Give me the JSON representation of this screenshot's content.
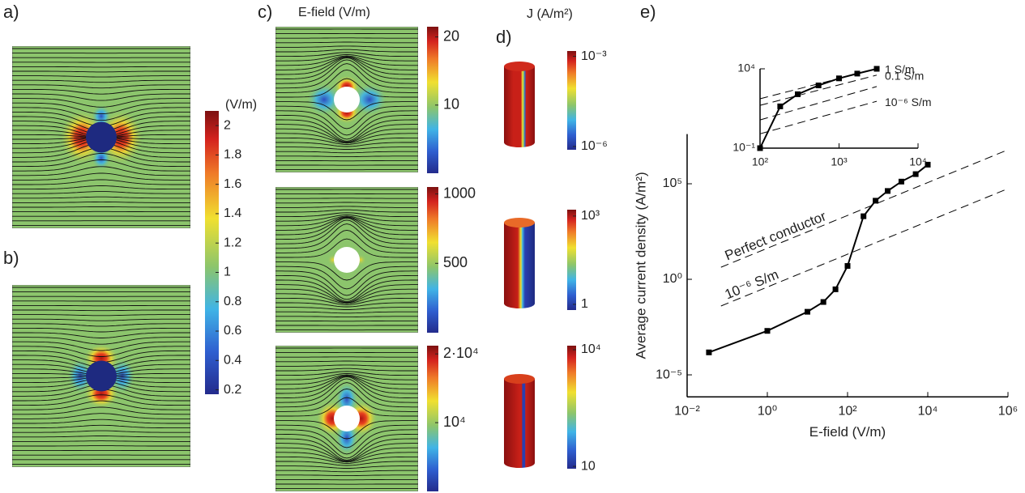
{
  "panel_labels": [
    "a)",
    "b)",
    "c)",
    "d)",
    "e)"
  ],
  "field_title": "E-field (V/m)",
  "field_unit": "(V/m)",
  "current_title": "J (A/m²)",
  "colorbars": [
    {
      "lim": [
        0.17,
        2.1
      ],
      "log": false,
      "ticks": [
        0.2,
        0.4,
        0.6,
        0.8,
        1,
        1.2,
        1.4,
        1.6,
        1.8,
        2
      ]
    },
    {
      "lim": [
        0,
        21.5
      ],
      "log": false,
      "ticks": [
        10,
        20
      ]
    },
    {
      "lim": [
        0,
        1050
      ],
      "log": false,
      "ticks": [
        500,
        1000
      ]
    },
    {
      "lim": [
        0,
        21200
      ],
      "log": false,
      "ticks": [
        {
          "value": 10000,
          "label": "10⁴"
        },
        {
          "value": 20000,
          "label": "2·10⁴"
        }
      ]
    },
    {
      "lim": [
        7.8e-07,
        0.0015
      ],
      "log": true,
      "ticks": [
        {
          "value": 1e-06,
          "label": "10⁻⁶"
        },
        {
          "value": 0.001,
          "label": "10⁻³"
        }
      ]
    },
    {
      "lim": [
        0.64,
        1650
      ],
      "log": true,
      "ticks": [
        1,
        {
          "value": 1000,
          "label": "10³"
        }
      ]
    },
    {
      "lim": [
        8.7,
        12700
      ],
      "log": true,
      "ticks": [
        10,
        {
          "value": 10000,
          "label": "10⁴"
        }
      ]
    }
  ],
  "chart_data": [
    {
      "type": "line",
      "xlabel": "E-field (V/m)",
      "ylabel": "Average current density (A/m²)",
      "log_x": true,
      "log_y": true,
      "xlim": [
        0.01,
        1000000
      ],
      "ylim": [
        7e-07,
        40000000
      ],
      "xticks": [
        {
          "value": 0.01,
          "label": "10⁻²"
        },
        {
          "value": 1,
          "label": "10⁰"
        },
        {
          "value": 100,
          "label": "10²"
        },
        {
          "value": 10000,
          "label": "10⁴"
        },
        {
          "value": 1000000,
          "label": "10⁶"
        }
      ],
      "yticks": [
        {
          "value": 1e-05,
          "label": "10⁻⁵"
        },
        {
          "value": 1,
          "label": "10⁰"
        },
        {
          "value": 100000,
          "label": "10⁵"
        }
      ],
      "series": [
        {
          "color": "#000000",
          "marker": "square",
          "dashed": false,
          "x": [
            0.035,
            1,
            10,
            25,
            50,
            100,
            250,
            500,
            1000,
            2200,
            5000,
            10000
          ],
          "values": [
            0.00015,
            0.002,
            0.02,
            0.065,
            0.3,
            5,
            2000,
            13000,
            42000,
            130000,
            320000,
            1000000
          ]
        },
        {
          "name": "Perfect conductor",
          "color": "#000000",
          "dashed": true,
          "x": [
            0.07,
            1000000
          ],
          "values": [
            4.3,
            6000000
          ]
        },
        {
          "name": "10⁻⁶ S/m",
          "color": "#000000",
          "dashed": true,
          "x": [
            0.07,
            1000000
          ],
          "values": [
            0.04,
            56000
          ]
        }
      ]
    },
    {
      "type": "line",
      "log_x": true,
      "log_y": true,
      "xlim": [
        100,
        10000
      ],
      "ylim": [
        0.1,
        10000
      ],
      "xticks": [
        {
          "value": 100,
          "label": "10²"
        },
        {
          "value": 1000,
          "label": "10³"
        },
        {
          "value": 10000,
          "label": "10⁴"
        }
      ],
      "yticks": [
        {
          "value": 0.1,
          "label": "10⁻¹"
        },
        {
          "value": 10000,
          "label": "10⁴"
        }
      ],
      "series": [
        {
          "color": "#000000",
          "marker": "square",
          "dashed": false,
          "x": [
            100,
            180,
            300,
            550,
            1000,
            1700,
            3000
          ],
          "values": [
            0.1,
            43,
            250,
            900,
            2500,
            5000,
            10000
          ]
        },
        {
          "name": "1 S/m",
          "color": "#000000",
          "dashed": true,
          "x": [
            100,
            3000
          ],
          "values": [
            130,
            10000
          ]
        },
        {
          "name": "0.1 S/m",
          "color": "#000000",
          "dashed": true,
          "x": [
            100,
            3000
          ],
          "values": [
            50,
            4000
          ]
        },
        {
          "color": "#000000",
          "dashed": true,
          "x": [
            100,
            3000
          ],
          "values": [
            6,
            760
          ]
        },
        {
          "name": "10⁻⁶ S/m",
          "color": "#000000",
          "dashed": true,
          "x": [
            100,
            3000
          ],
          "values": [
            0.8,
            90
          ]
        }
      ]
    }
  ]
}
